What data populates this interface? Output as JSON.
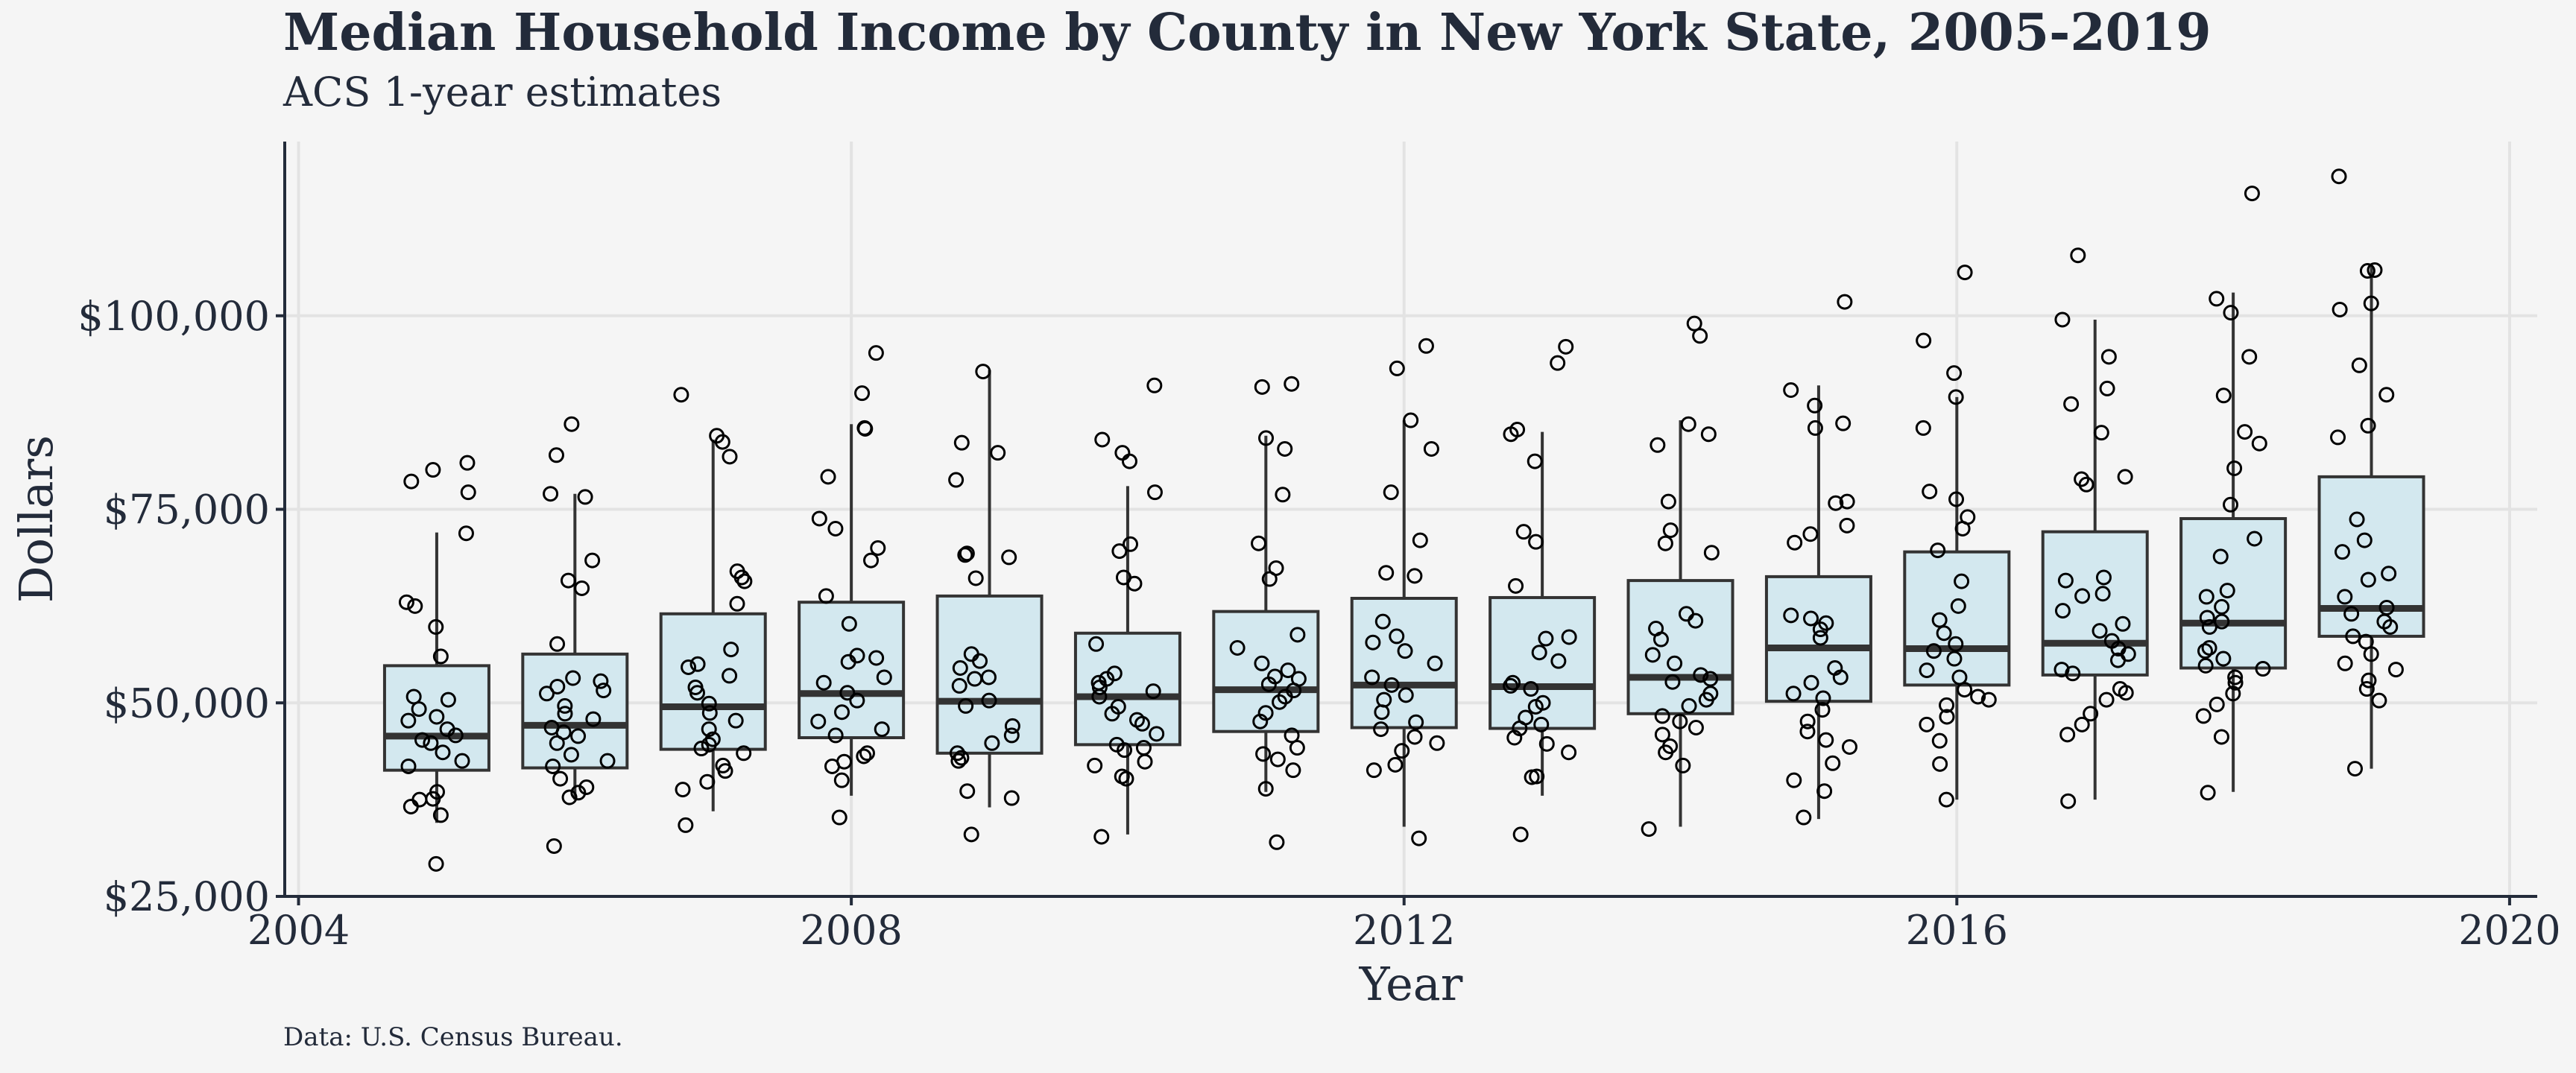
{
  "chart_data": {
    "type": "box",
    "title": "Median Household Income by County in New York State, 2005-2019",
    "subtitle": "ACS 1-year estimates",
    "caption": "Data: U.S. Census Bureau.",
    "xlabel": "Year",
    "ylabel": "Dollars",
    "xlim": [
      2003.9,
      2020.2
    ],
    "ylim": [
      25000,
      122500
    ],
    "x_ticks": [
      2004,
      2008,
      2012,
      2016,
      2020
    ],
    "y_ticks": [
      25000,
      50000,
      75000,
      100000
    ],
    "y_tick_labels": [
      "$25,000",
      "$50,000",
      "$75,000",
      "$100,000"
    ],
    "grid": true,
    "colors": {
      "box_fill": "#d3e8ef",
      "box_stroke": "#333333",
      "background": "#f5f5f5",
      "text": "#232b3a",
      "grid": "#e3e3e3"
    },
    "boxes": [
      {
        "year": 2005,
        "whisker_low": 34500,
        "q1": 41300,
        "median": 45700,
        "q3": 54800,
        "whisker_high": 72000
      },
      {
        "year": 2006,
        "whisker_low": 37500,
        "q1": 41600,
        "median": 47100,
        "q3": 56300,
        "whisker_high": 77000
      },
      {
        "year": 2007,
        "whisker_low": 36000,
        "q1": 44000,
        "median": 49500,
        "q3": 61500,
        "whisker_high": 84000
      },
      {
        "year": 2008,
        "whisker_low": 38000,
        "q1": 45500,
        "median": 51200,
        "q3": 63000,
        "whisker_high": 86000
      },
      {
        "year": 2009,
        "whisker_low": 36500,
        "q1": 43500,
        "median": 50200,
        "q3": 63800,
        "whisker_high": 93000
      },
      {
        "year": 2010,
        "whisker_low": 33000,
        "q1": 44600,
        "median": 50800,
        "q3": 59000,
        "whisker_high": 78000
      },
      {
        "year": 2011,
        "whisker_low": 38500,
        "q1": 46300,
        "median": 51700,
        "q3": 61800,
        "whisker_high": 84500
      },
      {
        "year": 2012,
        "whisker_low": 34000,
        "q1": 46800,
        "median": 52300,
        "q3": 63500,
        "whisker_high": 86500
      },
      {
        "year": 2013,
        "whisker_low": 38000,
        "q1": 46700,
        "median": 52100,
        "q3": 63600,
        "whisker_high": 85000
      },
      {
        "year": 2014,
        "whisker_low": 34000,
        "q1": 48600,
        "median": 53300,
        "q3": 65800,
        "whisker_high": 86500
      },
      {
        "year": 2015,
        "whisker_low": 35000,
        "q1": 50200,
        "median": 57100,
        "q3": 66300,
        "whisker_high": 91000
      },
      {
        "year": 2016,
        "whisker_low": 37500,
        "q1": 52300,
        "median": 57000,
        "q3": 69500,
        "whisker_high": 89500
      },
      {
        "year": 2017,
        "whisker_low": 37500,
        "q1": 53600,
        "median": 57700,
        "q3": 72100,
        "whisker_high": 99500
      },
      {
        "year": 2018,
        "whisker_low": 38500,
        "q1": 54500,
        "median": 60300,
        "q3": 73800,
        "whisker_high": 103000
      },
      {
        "year": 2019,
        "whisker_low": 41500,
        "q1": 58600,
        "median": 62200,
        "q3": 79200,
        "whisker_high": 106500
      }
    ],
    "points": [
      {
        "year": 2005,
        "values": [
          29200,
          35500,
          36600,
          37500,
          37600,
          38500,
          41800,
          42500,
          43600,
          44800,
          45200,
          45800,
          46600,
          47700,
          48200,
          49200,
          50400,
          50800,
          56000,
          59800,
          62500,
          63000,
          71900,
          77200,
          78600,
          80100,
          81000
        ]
      },
      {
        "year": 2006,
        "values": [
          31500,
          37800,
          38400,
          39100,
          40200,
          41800,
          42500,
          43300,
          44800,
          45700,
          46200,
          46800,
          47900,
          48600,
          49600,
          51200,
          51600,
          52100,
          52800,
          53200,
          57600,
          64800,
          65800,
          68400,
          76600,
          77000,
          82000,
          86000
        ]
      },
      {
        "year": 2007,
        "values": [
          34200,
          38800,
          39800,
          41200,
          41900,
          43500,
          44100,
          44600,
          45300,
          46600,
          47700,
          48700,
          49900,
          51300,
          52000,
          53500,
          54600,
          55000,
          56900,
          62800,
          65700,
          66200,
          67000,
          81800,
          83700,
          84500,
          89800
        ]
      },
      {
        "year": 2008,
        "values": [
          35200,
          40000,
          41800,
          42400,
          43100,
          43500,
          45800,
          46600,
          47600,
          48800,
          50300,
          51300,
          52600,
          53300,
          55300,
          55800,
          56100,
          60200,
          63800,
          68400,
          70000,
          72500,
          73800,
          79200,
          85400,
          85500,
          90000,
          95200
        ]
      },
      {
        "year": 2009,
        "values": [
          33000,
          37700,
          38600,
          42500,
          42900,
          43500,
          44800,
          45800,
          47000,
          49600,
          50300,
          52200,
          53100,
          53300,
          54500,
          55400,
          56300,
          66100,
          68800,
          69100,
          69300,
          78800,
          82300,
          83600,
          92800
        ]
      },
      {
        "year": 2010,
        "values": [
          32700,
          40200,
          40500,
          41900,
          42400,
          43900,
          44200,
          44600,
          46000,
          47300,
          47800,
          48600,
          49500,
          50800,
          51500,
          52000,
          52600,
          53100,
          53800,
          57600,
          65400,
          66200,
          69600,
          70500,
          77200,
          81200,
          82300,
          84000,
          91000
        ]
      },
      {
        "year": 2011,
        "values": [
          32000,
          38900,
          41300,
          42700,
          43400,
          44200,
          45800,
          47600,
          48700,
          50100,
          50800,
          51600,
          52400,
          53100,
          53400,
          54200,
          55100,
          57100,
          58800,
          66000,
          67400,
          70600,
          76900,
          82800,
          84200,
          90800,
          91200
        ]
      },
      {
        "year": 2012,
        "values": [
          32500,
          41300,
          42000,
          43800,
          44800,
          45600,
          46600,
          47500,
          48800,
          50400,
          51000,
          52300,
          53300,
          55100,
          56700,
          57800,
          58600,
          60500,
          66400,
          66800,
          71000,
          77200,
          82800,
          86500,
          93200,
          96100
        ]
      },
      {
        "year": 2013,
        "values": [
          33000,
          40400,
          40500,
          43600,
          44700,
          45500,
          46700,
          47200,
          48100,
          49500,
          50000,
          51800,
          52200,
          52600,
          55400,
          56500,
          58300,
          58500,
          65100,
          70800,
          72100,
          81200,
          84700,
          85300,
          93900,
          96000
        ]
      },
      {
        "year": 2014,
        "values": [
          33700,
          41900,
          43600,
          44400,
          45900,
          46800,
          47600,
          48300,
          49600,
          50400,
          51200,
          52700,
          53100,
          53600,
          55100,
          56200,
          58200,
          59600,
          60600,
          61500,
          69400,
          70600,
          72300,
          76000,
          83300,
          84700,
          86000,
          97400,
          99000
        ]
      },
      {
        "year": 2015,
        "values": [
          35200,
          38600,
          40000,
          42200,
          44300,
          45200,
          46300,
          47600,
          49100,
          50600,
          51200,
          52600,
          53300,
          54500,
          58400,
          59500,
          60300,
          60900,
          61300,
          70700,
          71800,
          72900,
          75800,
          76000,
          85500,
          86100,
          88400,
          90400,
          101800
        ]
      },
      {
        "year": 2016,
        "values": [
          37500,
          42100,
          45100,
          47200,
          48200,
          49700,
          50400,
          50800,
          51700,
          53300,
          54200,
          55700,
          56700,
          57600,
          59000,
          60700,
          62500,
          65700,
          69700,
          72500,
          74000,
          76300,
          77300,
          85500,
          89500,
          92600,
          96800,
          105600
        ]
      },
      {
        "year": 2017,
        "values": [
          37300,
          45900,
          47200,
          48600,
          50400,
          51300,
          51800,
          53800,
          54300,
          55500,
          56300,
          57000,
          58000,
          59300,
          60200,
          61900,
          63800,
          64100,
          65800,
          66200,
          78200,
          78900,
          79200,
          84900,
          88600,
          90600,
          94700,
          99500,
          107800
        ]
      },
      {
        "year": 2018,
        "values": [
          38400,
          45600,
          48300,
          49800,
          51200,
          52600,
          53300,
          54400,
          54800,
          55700,
          56700,
          57100,
          59800,
          60500,
          61000,
          62400,
          63700,
          64500,
          68900,
          71200,
          75600,
          80300,
          83500,
          85000,
          89700,
          94700,
          100400,
          102200,
          115800
        ]
      },
      {
        "year": 2019,
        "values": [
          41500,
          50300,
          51800,
          52900,
          54300,
          55100,
          56300,
          57900,
          58600,
          59800,
          60500,
          61500,
          62300,
          63700,
          65900,
          66700,
          69500,
          71000,
          73700,
          84300,
          85800,
          89800,
          93600,
          100800,
          101600,
          105800,
          105900,
          118000
        ]
      }
    ]
  }
}
